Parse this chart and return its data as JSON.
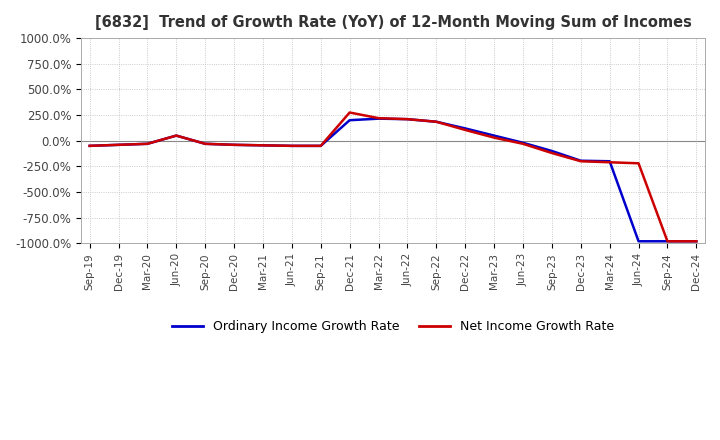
{
  "title": "[6832]  Trend of Growth Rate (YoY) of 12-Month Moving Sum of Incomes",
  "ylim": [
    -1000,
    1000
  ],
  "yticks": [
    1000,
    750,
    500,
    250,
    0,
    -250,
    -500,
    -750,
    -1000
  ],
  "legend_labels": [
    "Ordinary Income Growth Rate",
    "Net Income Growth Rate"
  ],
  "legend_colors": [
    "#0000cc",
    "#cc0000"
  ],
  "background_color": "#ffffff",
  "grid_color": "#bbbbbb",
  "x_labels": [
    "Sep-19",
    "Dec-19",
    "Mar-20",
    "Jun-20",
    "Sep-20",
    "Dec-20",
    "Mar-21",
    "Jun-21",
    "Sep-21",
    "Dec-21",
    "Mar-22",
    "Jun-22",
    "Sep-22",
    "Dec-22",
    "Mar-23",
    "Jun-23",
    "Sep-23",
    "Dec-23",
    "Mar-24",
    "Jun-24",
    "Sep-24",
    "Dec-24"
  ],
  "ordinary_income": [
    -50,
    -40,
    -30,
    50,
    -30,
    -40,
    -45,
    -50,
    -50,
    200,
    215,
    210,
    185,
    120,
    50,
    -20,
    -100,
    -195,
    -200,
    -980,
    -980,
    -980
  ],
  "net_income": [
    -50,
    -40,
    -30,
    50,
    -30,
    -40,
    -45,
    -50,
    -50,
    275,
    220,
    210,
    185,
    105,
    30,
    -30,
    -120,
    -200,
    -210,
    -220,
    -980,
    -980
  ]
}
